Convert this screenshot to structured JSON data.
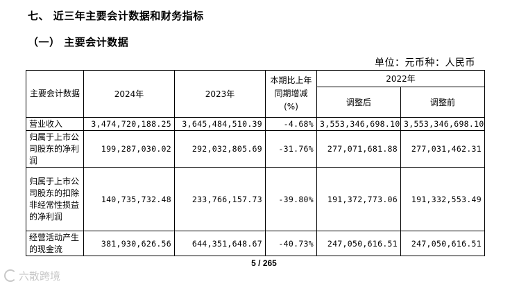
{
  "heading": {
    "section": "七、 近三年主要会计数据和财务指标",
    "subsection": "（一） 主要会计数据"
  },
  "unit_label": "单位：元币种：人民币",
  "table": {
    "header": {
      "name": "主要会计数据",
      "y2024": "2024年",
      "y2023": "2023年",
      "change": "本期比上年同期增减(%)",
      "y2022": "2022年",
      "adjusted": "调整后",
      "before_adjust": "调整前"
    },
    "rows": [
      {
        "name": "营业收入",
        "v2024": "3,474,720,188.25",
        "v2023": "3,645,484,510.39",
        "change": "-4.68%",
        "adj": "3,553,346,698.10",
        "pre": "3,553,346,698.10"
      },
      {
        "name": "归属于上市公司股东的净利润",
        "v2024": "199,287,030.02",
        "v2023": "292,032,805.69",
        "change": "-31.76%",
        "adj": "277,071,681.88",
        "pre": "277,031,462.31"
      },
      {
        "name": "归属于上市公司股东的扣除非经常性损益的净利润",
        "v2024": "140,735,732.48",
        "v2023": "233,766,157.73",
        "change": "-39.80%",
        "adj": "191,372,773.06",
        "pre": "191,332,553.49"
      },
      {
        "name": "经营活动产生的现金流",
        "v2024": "381,930,626.56",
        "v2023": "644,351,648.67",
        "change": "-40.73%",
        "adj": "247,050,616.51",
        "pre": "247,050,616.51"
      }
    ]
  },
  "page_number": "5 / 265",
  "watermark": "六散跨境",
  "icons": {
    "watermark": "watermark-logo-icon"
  }
}
